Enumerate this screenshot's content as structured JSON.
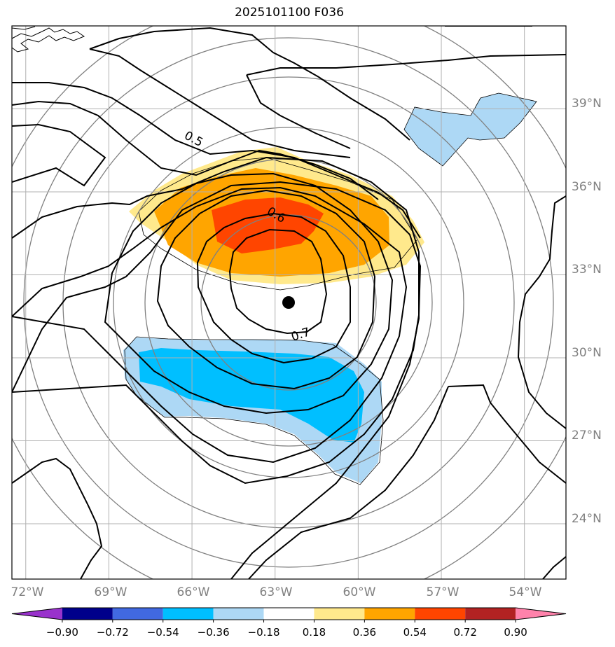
{
  "title": "2025101100 F036",
  "map": {
    "lon_range": [
      -72.5,
      -52.5
    ],
    "lat_range": [
      22,
      42
    ],
    "lon_ticks": [
      {
        "value": -72,
        "label": "72°W"
      },
      {
        "value": -69,
        "label": "69°W"
      },
      {
        "value": -66,
        "label": "66°W"
      },
      {
        "value": -63,
        "label": "63°W"
      },
      {
        "value": -60,
        "label": "60°W"
      },
      {
        "value": -57,
        "label": "57°W"
      },
      {
        "value": -54,
        "label": "54°W"
      }
    ],
    "lat_ticks": [
      {
        "value": 39,
        "label": "39°N"
      },
      {
        "value": 36,
        "label": "36°N"
      },
      {
        "value": 33,
        "label": "33°N"
      },
      {
        "value": 30,
        "label": "30°N"
      },
      {
        "value": 27,
        "label": "27°N"
      },
      {
        "value": 24,
        "label": "24°N"
      }
    ],
    "storm_center": {
      "lon": -62.5,
      "lat": 31.8
    },
    "contour_labels": [
      {
        "text": "0.5",
        "lon": -66.0,
        "lat": 37.7
      },
      {
        "text": "0.6",
        "lon": -62.9,
        "lat": 34.9
      },
      {
        "text": "0.7",
        "lon": -61.5,
        "lat": 30.6
      }
    ],
    "colors": {
      "neg_strong": "#00bfff",
      "neg_weak": "#add8f5",
      "pos_weak": "#ffe98c",
      "pos_mid": "#ffa500",
      "pos_strong": "#ff4500"
    }
  },
  "colorbar": {
    "levels": [
      "−0.90",
      "−0.72",
      "−0.54",
      "−0.36",
      "−0.18",
      "0.18",
      "0.36",
      "0.54",
      "0.72",
      "0.90"
    ],
    "colors": [
      "#9932cc",
      "#00008b",
      "#4169e1",
      "#00bfff",
      "#add8f5",
      "#ffffff",
      "#ffe98c",
      "#ffa500",
      "#ff4500",
      "#b22222",
      "#ff82ab"
    ]
  }
}
